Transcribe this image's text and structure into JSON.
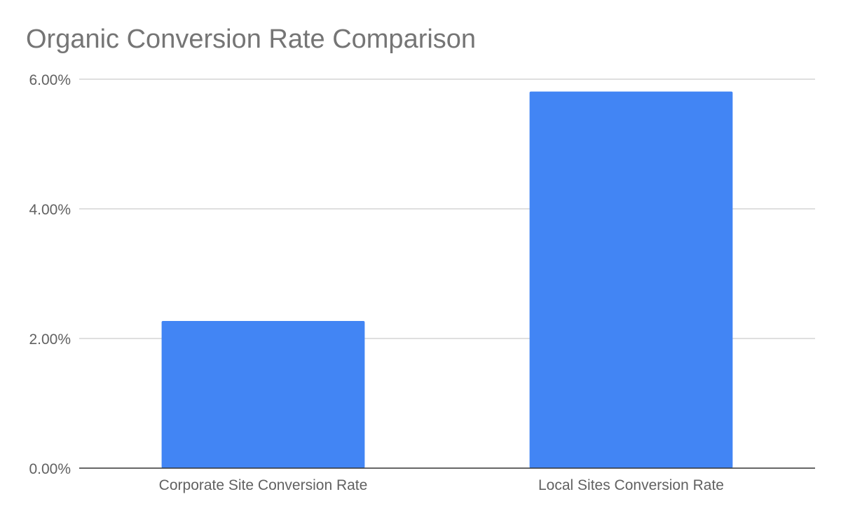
{
  "chart_data": {
    "type": "bar",
    "title": "Organic Conversion Rate Comparison",
    "xlabel": "",
    "ylabel": "",
    "categories": [
      "Corporate Site Conversion Rate",
      "Local Sites Conversion Rate"
    ],
    "values": [
      2.27,
      5.81
    ],
    "value_format": "percent",
    "ylim": [
      0,
      6
    ],
    "yticks": [
      0,
      2,
      4,
      6
    ],
    "ytick_labels": [
      "0.00%",
      "2.00%",
      "4.00%",
      "6.00%"
    ],
    "grid": true,
    "legend": "none",
    "colors": {
      "bar": "#4285f4",
      "grid": "#cccccc",
      "axis": "#333333",
      "title": "#757575",
      "text": "#616161"
    }
  }
}
